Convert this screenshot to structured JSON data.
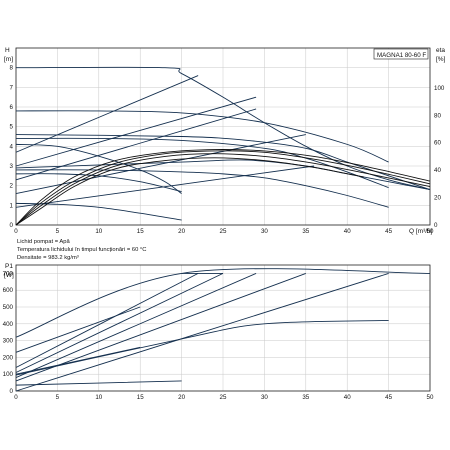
{
  "chart_data": [
    {
      "type": "line",
      "model_label": "MAGNA1 80-60 F",
      "y_title": "H",
      "y_unit": "[m]",
      "y2_title": "eta",
      "y2_unit": "[%]",
      "x_title": "Q [m³/h]",
      "xlim": [
        0,
        50
      ],
      "ylim": [
        0,
        9
      ],
      "y2lim": [
        0,
        100
      ],
      "x_ticks": [
        "0",
        "5",
        "10",
        "15",
        "20",
        "25",
        "30",
        "35",
        "40",
        "45",
        "50"
      ],
      "y_ticks": [
        "0",
        "1",
        "2",
        "3",
        "4",
        "5",
        "6",
        "7",
        "8"
      ],
      "y2_ticks": [
        "0",
        "20",
        "40",
        "60",
        "80",
        "100"
      ],
      "grid": true,
      "notes": [
        "Lichid pompat = Apă",
        "Temperatura lichidului în timpul funcționări = 60 °C",
        "Densitate = 983.2 kg/m³"
      ],
      "series": [
        {
          "style": "pump",
          "x": [
            0,
            18,
            20,
            25,
            30,
            35,
            40,
            45,
            50
          ],
          "y": [
            8.0,
            8.0,
            7.7,
            6.5,
            5.2,
            4.0,
            3.0,
            2.3,
            1.8
          ]
        },
        {
          "style": "pump",
          "x": [
            0,
            10,
            20,
            30,
            40,
            45
          ],
          "y": [
            5.8,
            5.8,
            5.7,
            5.2,
            4.1,
            3.2
          ]
        },
        {
          "style": "pump",
          "x": [
            0,
            10,
            20,
            30,
            35,
            40,
            45
          ],
          "y": [
            4.4,
            4.4,
            4.3,
            3.9,
            3.4,
            2.7,
            1.9
          ]
        },
        {
          "style": "pump",
          "x": [
            0,
            10,
            20,
            25,
            30,
            35,
            40,
            45
          ],
          "y": [
            2.8,
            2.8,
            2.7,
            2.6,
            2.4,
            2.0,
            1.5,
            0.9
          ]
        },
        {
          "style": "pump",
          "x": [
            0,
            5,
            10,
            15,
            18,
            20
          ],
          "y": [
            4.1,
            4.0,
            3.5,
            2.8,
            2.2,
            1.6
          ]
        },
        {
          "style": "pump",
          "x": [
            0,
            5,
            10,
            15,
            20
          ],
          "y": [
            2.6,
            2.6,
            2.5,
            2.2,
            1.7
          ]
        },
        {
          "style": "pump",
          "x": [
            0,
            5,
            10,
            15,
            20
          ],
          "y": [
            1.1,
            1.05,
            0.9,
            0.6,
            0.25
          ]
        },
        {
          "style": "pump",
          "x": [
            0,
            20,
            28,
            35,
            40,
            45,
            50
          ],
          "y": [
            2.9,
            3.2,
            3.3,
            3.0,
            2.6,
            2.2,
            1.8
          ]
        },
        {
          "style": "pump",
          "x": [
            0,
            20,
            28,
            35,
            40,
            45,
            50
          ],
          "y": [
            4.6,
            4.5,
            4.3,
            3.9,
            3.2,
            2.5,
            1.8
          ]
        },
        {
          "style": "pump",
          "x": [
            0,
            22
          ],
          "y": [
            3.7,
            7.6
          ]
        },
        {
          "style": "pump",
          "x": [
            0,
            29
          ],
          "y": [
            3.0,
            6.5
          ]
        },
        {
          "style": "pump",
          "x": [
            0,
            29
          ],
          "y": [
            2.3,
            5.9
          ]
        },
        {
          "style": "pump",
          "x": [
            0,
            35
          ],
          "y": [
            1.6,
            4.6
          ]
        },
        {
          "style": "pump",
          "x": [
            0,
            36
          ],
          "y": [
            0.9,
            3.0
          ]
        },
        {
          "style": "eta",
          "x": [
            0,
            3,
            7,
            12,
            18,
            24,
            30,
            36,
            42,
            50
          ],
          "y": [
            0,
            18,
            35,
            47,
            53,
            55,
            54,
            50,
            43,
            32
          ]
        },
        {
          "style": "eta",
          "x": [
            0,
            3,
            7,
            12,
            18,
            24,
            30,
            36,
            42,
            50
          ],
          "y": [
            0,
            16,
            32,
            45,
            52,
            54,
            53,
            48,
            41,
            30
          ]
        },
        {
          "style": "eta",
          "x": [
            0,
            3,
            7,
            12,
            18,
            24,
            30,
            36,
            42,
            50
          ],
          "y": [
            0,
            14,
            30,
            43,
            50,
            52,
            50,
            45,
            38,
            28
          ]
        },
        {
          "style": "eta",
          "x": [
            0,
            3,
            7,
            12,
            18,
            24,
            30,
            36,
            42
          ],
          "y": [
            0,
            12,
            28,
            41,
            47,
            49,
            47,
            42,
            35
          ]
        }
      ]
    },
    {
      "type": "line",
      "y_title": "P1",
      "y_unit": "[W]",
      "xlim": [
        0,
        50
      ],
      "ylim": [
        0,
        750
      ],
      "x_ticks": [
        "0",
        "5",
        "10",
        "15",
        "20",
        "25",
        "30",
        "35",
        "40",
        "45",
        "50"
      ],
      "y_ticks": [
        "0",
        "100",
        "200",
        "300",
        "400",
        "500",
        "600",
        "700"
      ],
      "grid": true,
      "series": [
        {
          "style": "power",
          "x": [
            0,
            20,
            50
          ],
          "y": [
            320,
            700,
            700
          ]
        },
        {
          "style": "power",
          "x": [
            0,
            22
          ],
          "y": [
            140,
            700
          ]
        },
        {
          "style": "power",
          "x": [
            0,
            25
          ],
          "y": [
            110,
            700
          ]
        },
        {
          "style": "power",
          "x": [
            0,
            29
          ],
          "y": [
            80,
            700
          ]
        },
        {
          "style": "power",
          "x": [
            0,
            35
          ],
          "y": [
            60,
            700
          ]
        },
        {
          "style": "power",
          "x": [
            0,
            45
          ],
          "y": [
            0,
            700
          ]
        },
        {
          "style": "power",
          "x": [
            0,
            20,
            30,
            45
          ],
          "y": [
            95,
            310,
            400,
            420
          ]
        },
        {
          "style": "power",
          "x": [
            0,
            15
          ],
          "y": [
            230,
            500
          ]
        },
        {
          "style": "power",
          "x": [
            0,
            15
          ],
          "y": [
            100,
            260
          ]
        },
        {
          "style": "power",
          "x": [
            0,
            20
          ],
          "y": [
            35,
            60
          ]
        },
        {
          "style": "power",
          "x": [
            20,
            25
          ],
          "y": [
            700,
            700
          ]
        }
      ]
    }
  ]
}
